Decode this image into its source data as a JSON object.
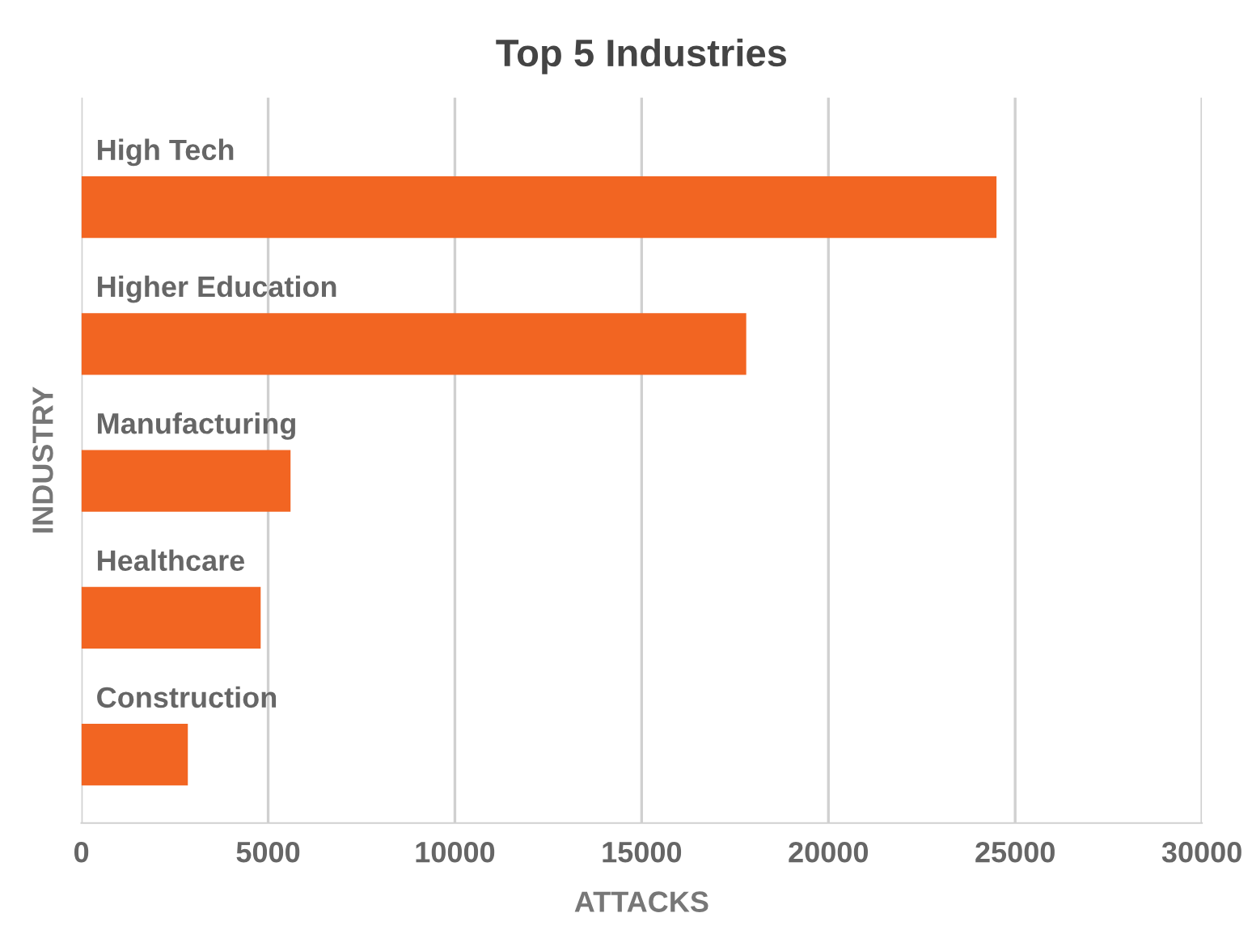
{
  "chart_data": {
    "type": "bar",
    "orientation": "horizontal",
    "title": "Top 5 Industries",
    "xlabel": "ATTACKS",
    "ylabel": "INDUSTRY",
    "categories": [
      "High Tech",
      "Higher Education",
      "Manufacturing",
      "Healthcare",
      "Construction"
    ],
    "values": [
      24500,
      17800,
      5600,
      4800,
      2850
    ],
    "color": "#f26522",
    "xlim": [
      0,
      30000
    ],
    "xticks": [
      0,
      5000,
      10000,
      15000,
      20000,
      25000,
      30000
    ],
    "grid": "x",
    "legend": false
  }
}
